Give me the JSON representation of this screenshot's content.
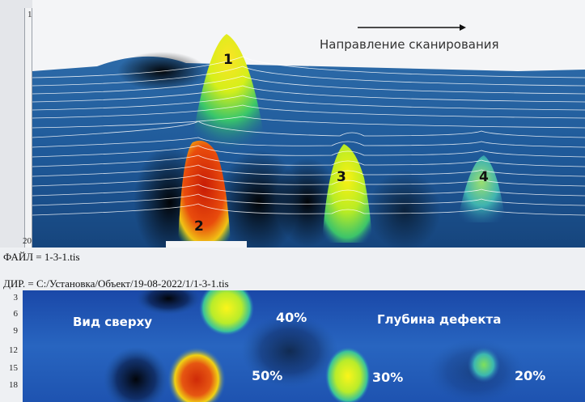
{
  "scan3d": {
    "row_top": "1",
    "row_bottom": "20",
    "direction_label": "Направление сканирования",
    "peak_labels": [
      "1",
      "2",
      "3",
      "4"
    ]
  },
  "file_info": {
    "file_line": "ФАЙЛ = 1-3-1.tis",
    "dir_line": "ДИР. = С:/Установка/Объект/19-08-2022/1/1-3-1.tis"
  },
  "topview": {
    "ruler": [
      "3",
      "6",
      "9",
      "12",
      "15",
      "18"
    ],
    "title": "Вид сверху",
    "depth_title": "Глубина дефекта",
    "percentages": [
      "40%",
      "50%",
      "30%",
      "20%"
    ]
  },
  "colors": {
    "background_blue": "#1b4f8f",
    "hot_red": "#d42a0a",
    "hot_yellow": "#f5f514",
    "mid_green": "#3ec84a"
  }
}
